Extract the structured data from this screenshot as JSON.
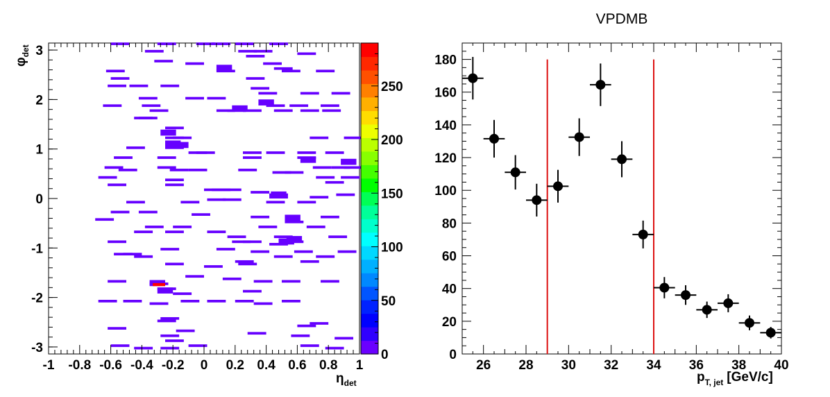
{
  "colors": {
    "cell": "#6600ff",
    "marker": "#000000",
    "cutline": "#dd1111",
    "highlight": "#ff0000"
  },
  "chart_data": [
    {
      "type": "heatmap",
      "title": "",
      "xlabel": "η",
      "xlabel_sub": "det",
      "ylabel": "φ",
      "ylabel_sub": "det",
      "xlim": [
        -1,
        1
      ],
      "ylim": [
        -3.1416,
        3.1416
      ],
      "xticks": [
        -1,
        -0.8,
        -0.6,
        -0.4,
        -0.2,
        0,
        0.2,
        0.4,
        0.6,
        0.8,
        1
      ],
      "xtick_labels": [
        "-1",
        "-0.8",
        "-0.6",
        "-0.4",
        "-0.2",
        "0",
        "0.2",
        "0.4",
        "0.6",
        "0.8",
        "1"
      ],
      "yticks": [
        -3,
        -2,
        -1,
        0,
        1,
        2,
        3
      ],
      "ytick_labels": [
        "-3",
        "-2",
        "-1",
        "0",
        "1",
        "2",
        "3"
      ],
      "colorbar": {
        "range": [
          0,
          290
        ],
        "ticks": [
          0,
          50,
          100,
          150,
          200,
          250
        ],
        "tick_labels": [
          "0",
          "50",
          "100",
          "150",
          "200",
          "250"
        ],
        "colors": [
          "#6a00ff",
          "#3000ff",
          "#0000ff",
          "#0022ff",
          "#0055ff",
          "#0088ff",
          "#00b0ff",
          "#00d8ff",
          "#00ffff",
          "#00ffcc",
          "#00ff99",
          "#00ff55",
          "#00ff00",
          "#44ff00",
          "#88ff00",
          "#bbff00",
          "#eeff00",
          "#ffdd00",
          "#ffb000",
          "#ff8000",
          "#ff5000",
          "#ff2800",
          "#ff0000"
        ]
      },
      "cells": [
        [
          -0.6,
          3.1
        ],
        [
          -0.3,
          3.1
        ],
        [
          -0.05,
          3.1
        ],
        [
          0.05,
          3.1
        ],
        [
          0.2,
          3.1
        ],
        [
          0.42,
          3.1
        ],
        [
          -0.38,
          2.95
        ],
        [
          0.22,
          2.95
        ],
        [
          0.32,
          2.95
        ],
        [
          0.6,
          2.9
        ],
        [
          0.27,
          2.85
        ],
        [
          -0.32,
          2.75
        ],
        [
          -0.12,
          2.7
        ],
        [
          0.38,
          2.7
        ],
        [
          0.45,
          2.6
        ],
        [
          0.5,
          2.55
        ],
        [
          -0.63,
          2.55
        ],
        [
          0.08,
          2.55
        ],
        [
          0.72,
          2.55
        ],
        [
          -0.6,
          2.4
        ],
        [
          0.27,
          2.4
        ],
        [
          -0.62,
          2.25
        ],
        [
          -0.48,
          2.25
        ],
        [
          -0.28,
          2.25
        ],
        [
          0.3,
          2.2
        ],
        [
          0.35,
          2.1
        ],
        [
          0.62,
          2.1
        ],
        [
          0.82,
          2.1
        ],
        [
          -0.42,
          2.0
        ],
        [
          -0.12,
          2.0
        ],
        [
          0.02,
          2.0
        ],
        [
          -0.4,
          1.85
        ],
        [
          -0.65,
          1.85
        ],
        [
          0.4,
          1.85
        ],
        [
          0.55,
          1.85
        ],
        [
          0.75,
          1.85
        ],
        [
          -0.35,
          1.75
        ],
        [
          0.15,
          1.75
        ],
        [
          0.08,
          1.75
        ],
        [
          0.25,
          1.75
        ],
        [
          0.45,
          1.75
        ],
        [
          0.62,
          1.75
        ],
        [
          0.76,
          1.75
        ],
        [
          -0.42,
          1.6
        ],
        [
          -0.45,
          1.6
        ],
        [
          -0.25,
          1.4
        ],
        [
          -0.2,
          1.2
        ],
        [
          -0.25,
          1.2
        ],
        [
          0.68,
          1.2
        ],
        [
          0.9,
          1.2
        ],
        [
          -0.5,
          1.0
        ],
        [
          -0.25,
          1.0
        ],
        [
          -0.1,
          0.9
        ],
        [
          -0.05,
          0.9
        ],
        [
          0.25,
          0.9
        ],
        [
          0.4,
          0.9
        ],
        [
          0.6,
          0.9
        ],
        [
          0.78,
          0.9
        ],
        [
          -0.58,
          0.8
        ],
        [
          -0.3,
          0.8
        ],
        [
          0.25,
          0.8
        ],
        [
          0.6,
          0.8
        ],
        [
          0.7,
          0.6
        ],
        [
          0.82,
          0.6
        ],
        [
          0.9,
          0.6
        ],
        [
          -0.64,
          0.6
        ],
        [
          -0.55,
          0.55
        ],
        [
          -0.3,
          0.6
        ],
        [
          -0.22,
          0.55
        ],
        [
          -0.1,
          0.55
        ],
        [
          0.22,
          0.55
        ],
        [
          0.44,
          0.5
        ],
        [
          0.52,
          0.5
        ],
        [
          0.72,
          0.4
        ],
        [
          0.88,
          0.4
        ],
        [
          -0.68,
          0.4
        ],
        [
          -0.25,
          0.35
        ],
        [
          -0.25,
          0.25
        ],
        [
          0.78,
          0.3
        ],
        [
          -0.62,
          0.25
        ],
        [
          0.0,
          0.15
        ],
        [
          0.05,
          0.15
        ],
        [
          0.12,
          0.15
        ],
        [
          0.3,
          0.1
        ],
        [
          0.42,
          0.05
        ],
        [
          0.42,
          0.0
        ],
        [
          0.68,
          0.0
        ],
        [
          0.85,
          0.05
        ],
        [
          -0.5,
          -0.1
        ],
        [
          -0.15,
          -0.1
        ],
        [
          0.02,
          -0.05
        ],
        [
          0.12,
          -0.05
        ],
        [
          0.4,
          -0.1
        ],
        [
          0.6,
          -0.1
        ],
        [
          -0.42,
          -0.3
        ],
        [
          -0.6,
          -0.3
        ],
        [
          -0.08,
          -0.35
        ],
        [
          0.3,
          -0.4
        ],
        [
          0.52,
          -0.5
        ],
        [
          0.75,
          -0.4
        ],
        [
          -0.7,
          -0.45
        ],
        [
          -0.38,
          -0.6
        ],
        [
          -0.2,
          -0.6
        ],
        [
          0.35,
          -0.6
        ],
        [
          0.66,
          -0.6
        ],
        [
          -0.45,
          -0.7
        ],
        [
          -0.25,
          -0.7
        ],
        [
          0.02,
          -0.7
        ],
        [
          0.15,
          -0.8
        ],
        [
          0.45,
          -0.8
        ],
        [
          0.8,
          -0.8
        ],
        [
          -0.62,
          -0.9
        ],
        [
          0.18,
          -0.9
        ],
        [
          0.25,
          -0.9
        ],
        [
          0.42,
          -0.95
        ],
        [
          0.52,
          -0.9
        ],
        [
          -0.28,
          -1.05
        ],
        [
          0.08,
          -1.05
        ],
        [
          0.3,
          -1.1
        ],
        [
          0.58,
          -1.1
        ],
        [
          0.86,
          -1.1
        ],
        [
          -0.58,
          -1.15
        ],
        [
          -0.52,
          -1.15
        ],
        [
          -0.45,
          -1.2
        ],
        [
          0.2,
          -1.3
        ],
        [
          0.45,
          -1.2
        ],
        [
          0.72,
          -1.2
        ],
        [
          -0.25,
          -1.35
        ],
        [
          0.0,
          -1.4
        ],
        [
          0.22,
          -1.35
        ],
        [
          0.62,
          -1.3
        ],
        [
          -0.62,
          -1.7
        ],
        [
          -0.35,
          -1.75
        ],
        [
          -0.12,
          -1.6
        ],
        [
          0.12,
          -1.65
        ],
        [
          0.32,
          -1.7
        ],
        [
          0.5,
          -1.7
        ],
        [
          0.75,
          -1.7
        ],
        [
          -0.3,
          -1.85
        ],
        [
          -0.2,
          -1.95
        ],
        [
          0.25,
          -1.9
        ],
        [
          -0.68,
          -2.1
        ],
        [
          -0.52,
          -2.1
        ],
        [
          -0.35,
          -2.15
        ],
        [
          -0.15,
          -2.1
        ],
        [
          0.02,
          -2.1
        ],
        [
          0.2,
          -2.1
        ],
        [
          0.32,
          -2.15
        ],
        [
          0.5,
          -2.1
        ],
        [
          -0.28,
          -2.45
        ],
        [
          -0.3,
          -2.5
        ],
        [
          0.6,
          -2.6
        ],
        [
          0.68,
          -2.55
        ],
        [
          -0.62,
          -2.65
        ],
        [
          -0.18,
          -2.7
        ],
        [
          -0.28,
          -2.8
        ],
        [
          -0.25,
          -2.9
        ],
        [
          0.28,
          -2.75
        ],
        [
          0.56,
          -2.8
        ],
        [
          0.84,
          -2.85
        ],
        [
          -0.6,
          -3.0
        ],
        [
          -0.45,
          -3.05
        ],
        [
          -0.28,
          -3.05
        ],
        [
          -0.1,
          -3.0
        ],
        [
          0.62,
          -3.0
        ],
        [
          0.78,
          -3.05
        ]
      ],
      "dense_cells": [
        [
          0.08,
          2.58
        ],
        [
          0.35,
          1.88
        ],
        [
          0.18,
          1.76
        ],
        [
          0.53,
          -0.88
        ],
        [
          0.48,
          -0.93
        ],
        [
          0.43,
          0.02
        ],
        [
          0.62,
          0.72
        ],
        [
          0.88,
          0.68
        ],
        [
          -0.2,
          1.02
        ],
        [
          -0.25,
          1.05
        ],
        [
          -0.28,
          1.27
        ],
        [
          -0.35,
          -1.77
        ],
        [
          -0.3,
          -1.92
        ],
        [
          0.52,
          -0.45
        ]
      ],
      "hot_cell": [
        -0.33,
        -1.77
      ]
    },
    {
      "type": "scatter",
      "title": "VPDMB",
      "xlabel": "p",
      "xlabel_sub": "T, jet",
      "xlabel_suffix": "[GeV/c]",
      "ylabel": "",
      "xlim": [
        25,
        40
      ],
      "ylim": [
        0,
        190
      ],
      "xticks": [
        26,
        28,
        30,
        32,
        34,
        36,
        38,
        40
      ],
      "xtick_labels": [
        "26",
        "28",
        "30",
        "32",
        "34",
        "36",
        "38",
        "40"
      ],
      "yticks": [
        0,
        20,
        40,
        60,
        80,
        100,
        120,
        140,
        160,
        180
      ],
      "ytick_labels": [
        "0",
        "20",
        "40",
        "60",
        "80",
        "100",
        "120",
        "140",
        "160",
        "180"
      ],
      "points": [
        {
          "x": 25.5,
          "y": 168.5,
          "xerr": 0.5,
          "yerr": 13
        },
        {
          "x": 26.5,
          "y": 131.5,
          "xerr": 0.5,
          "yerr": 11.5
        },
        {
          "x": 27.5,
          "y": 111,
          "xerr": 0.5,
          "yerr": 10.5
        },
        {
          "x": 28.5,
          "y": 94,
          "xerr": 0.5,
          "yerr": 10
        },
        {
          "x": 29.5,
          "y": 102.5,
          "xerr": 0.5,
          "yerr": 10
        },
        {
          "x": 30.5,
          "y": 132.5,
          "xerr": 0.5,
          "yerr": 11.5
        },
        {
          "x": 31.5,
          "y": 164.5,
          "xerr": 0.5,
          "yerr": 13
        },
        {
          "x": 32.5,
          "y": 119,
          "xerr": 0.5,
          "yerr": 11
        },
        {
          "x": 33.5,
          "y": 73,
          "xerr": 0.5,
          "yerr": 8.5
        },
        {
          "x": 34.5,
          "y": 40.5,
          "xerr": 0.5,
          "yerr": 6.5
        },
        {
          "x": 35.5,
          "y": 36,
          "xerr": 0.5,
          "yerr": 6
        },
        {
          "x": 36.5,
          "y": 27,
          "xerr": 0.5,
          "yerr": 5
        },
        {
          "x": 37.5,
          "y": 31,
          "xerr": 0.5,
          "yerr": 5.5
        },
        {
          "x": 38.5,
          "y": 19,
          "xerr": 0.5,
          "yerr": 4.5
        },
        {
          "x": 39.5,
          "y": 13,
          "xerr": 0.5,
          "yerr": 3.5
        }
      ],
      "cut_lines": [
        29,
        34
      ],
      "cut_line_top": 180
    }
  ]
}
